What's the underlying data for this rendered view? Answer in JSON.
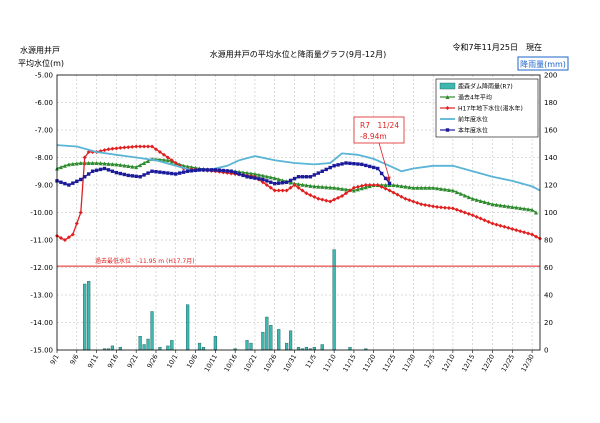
{
  "chart_data": {
    "type": "line",
    "title": "水源用井戸の平均水位と降雨量グラフ(9月-12月)",
    "date_label": "令和7年11月25日　現在",
    "left_axis_label": [
      "水源用井戸",
      "平均水位(m)"
    ],
    "right_axis_label": "降雨量(mm)",
    "left_ylim": [
      -15.0,
      -5.0
    ],
    "right_ylim": [
      0,
      200
    ],
    "left_ticks": [
      "-5.00",
      "-6.00",
      "-7.00",
      "-8.00",
      "-9.00",
      "-10.00",
      "-11.00",
      "-12.00",
      "-13.00",
      "-14.00",
      "-15.00"
    ],
    "right_ticks": [
      "200",
      "180",
      "160",
      "140",
      "120",
      "100",
      "80",
      "60",
      "40",
      "20",
      "0"
    ],
    "x_tick_labels": [
      "9/1",
      "9/6",
      "9/11",
      "9/16",
      "9/21",
      "9/26",
      "10/1",
      "10/6",
      "10/11",
      "10/16",
      "10/21",
      "10/26",
      "10/31",
      "11/5",
      "11/10",
      "11/15",
      "11/20",
      "11/25",
      "11/30",
      "12/5",
      "12/10",
      "12/15",
      "12/20",
      "12/25",
      "12/30"
    ],
    "grid": true,
    "legend_position": "top-right",
    "legend": [
      {
        "label": "鹿森ダム降雨量(R7)",
        "color": "#3cb8b0",
        "kind": "bar"
      },
      {
        "label": "過去4年平均",
        "color": "#2e8b2e",
        "kind": "line-triangle"
      },
      {
        "label": "H17年地下水位(渇水年)",
        "color": "#e02020",
        "kind": "line-diamond"
      },
      {
        "label": "前年度水位",
        "color": "#5ab4d6",
        "kind": "line"
      },
      {
        "label": "本年度水位",
        "color": "#1a1a9a",
        "kind": "line-square"
      }
    ],
    "reference_line": {
      "value": -11.95,
      "label": "過去最低水位　-11.95 m (H17.7月)",
      "color": "#e02020"
    },
    "callout": {
      "line1": "R7　11/24",
      "line2": "-8.94m",
      "color": "#e02020",
      "day": 84,
      "value": -8.94
    },
    "rainfall": [
      {
        "day": 7,
        "value": 48
      },
      {
        "day": 8,
        "value": 50
      },
      {
        "day": 12,
        "value": 1
      },
      {
        "day": 13,
        "value": 1
      },
      {
        "day": 14,
        "value": 3
      },
      {
        "day": 16,
        "value": 2
      },
      {
        "day": 21,
        "value": 10
      },
      {
        "day": 22,
        "value": 4
      },
      {
        "day": 23,
        "value": 8
      },
      {
        "day": 24,
        "value": 28
      },
      {
        "day": 26,
        "value": 2
      },
      {
        "day": 28,
        "value": 3
      },
      {
        "day": 29,
        "value": 7
      },
      {
        "day": 33,
        "value": 33
      },
      {
        "day": 36,
        "value": 5
      },
      {
        "day": 37,
        "value": 2
      },
      {
        "day": 40,
        "value": 10
      },
      {
        "day": 45,
        "value": 1
      },
      {
        "day": 48,
        "value": 7
      },
      {
        "day": 49,
        "value": 5
      },
      {
        "day": 52,
        "value": 13
      },
      {
        "day": 53,
        "value": 24
      },
      {
        "day": 54,
        "value": 18
      },
      {
        "day": 56,
        "value": 15
      },
      {
        "day": 58,
        "value": 5
      },
      {
        "day": 59,
        "value": 14
      },
      {
        "day": 61,
        "value": 2
      },
      {
        "day": 62,
        "value": 1
      },
      {
        "day": 63,
        "value": 2
      },
      {
        "day": 64,
        "value": 1
      },
      {
        "day": 65,
        "value": 2
      },
      {
        "day": 67,
        "value": 4
      },
      {
        "day": 70,
        "value": 73
      },
      {
        "day": 74,
        "value": 2
      },
      {
        "day": 78,
        "value": 1
      }
    ],
    "series": [
      {
        "name": "過去4年平均",
        "color": "#2e8b2e",
        "marker": "triangle",
        "points": [
          [
            0,
            -8.4
          ],
          [
            3,
            -8.25
          ],
          [
            6,
            -8.2
          ],
          [
            10,
            -8.2
          ],
          [
            15,
            -8.25
          ],
          [
            20,
            -8.35
          ],
          [
            24,
            -8.05
          ],
          [
            28,
            -8.1
          ],
          [
            32,
            -8.3
          ],
          [
            36,
            -8.4
          ],
          [
            40,
            -8.45
          ],
          [
            45,
            -8.5
          ],
          [
            50,
            -8.6
          ],
          [
            55,
            -8.75
          ],
          [
            60,
            -8.95
          ],
          [
            65,
            -9.05
          ],
          [
            70,
            -9.1
          ],
          [
            75,
            -9.2
          ],
          [
            80,
            -9.0
          ],
          [
            85,
            -9.0
          ],
          [
            90,
            -9.1
          ],
          [
            95,
            -9.1
          ],
          [
            100,
            -9.2
          ],
          [
            105,
            -9.5
          ],
          [
            110,
            -9.7
          ],
          [
            115,
            -9.8
          ],
          [
            120,
            -9.9
          ],
          [
            121,
            -10.0
          ]
        ]
      },
      {
        "name": "H17年地下水位(渇水年)",
        "color": "#e02020",
        "marker": "diamond",
        "points": [
          [
            0,
            -10.85
          ],
          [
            2,
            -11.0
          ],
          [
            4,
            -10.8
          ],
          [
            6,
            -10.0
          ],
          [
            7,
            -8.0
          ],
          [
            8,
            -7.8
          ],
          [
            10,
            -7.8
          ],
          [
            13,
            -7.7
          ],
          [
            16,
            -7.65
          ],
          [
            20,
            -7.6
          ],
          [
            24,
            -7.6
          ],
          [
            28,
            -8.0
          ],
          [
            32,
            -8.4
          ],
          [
            36,
            -8.45
          ],
          [
            40,
            -8.5
          ],
          [
            45,
            -8.6
          ],
          [
            50,
            -8.7
          ],
          [
            55,
            -9.2
          ],
          [
            58,
            -9.2
          ],
          [
            60,
            -9.0
          ],
          [
            63,
            -9.3
          ],
          [
            66,
            -9.5
          ],
          [
            69,
            -9.6
          ],
          [
            72,
            -9.4
          ],
          [
            75,
            -9.1
          ],
          [
            78,
            -9.0
          ],
          [
            81,
            -9.0
          ],
          [
            84,
            -9.2
          ],
          [
            88,
            -9.5
          ],
          [
            92,
            -9.7
          ],
          [
            96,
            -9.8
          ],
          [
            100,
            -9.85
          ],
          [
            105,
            -10.1
          ],
          [
            110,
            -10.4
          ],
          [
            115,
            -10.6
          ],
          [
            120,
            -10.8
          ],
          [
            122,
            -10.95
          ]
        ]
      },
      {
        "name": "前年度水位",
        "color": "#5ab4d6",
        "marker": "none",
        "points": [
          [
            0,
            -7.55
          ],
          [
            5,
            -7.6
          ],
          [
            10,
            -7.8
          ],
          [
            15,
            -7.9
          ],
          [
            20,
            -8.0
          ],
          [
            25,
            -8.1
          ],
          [
            30,
            -8.3
          ],
          [
            35,
            -8.5
          ],
          [
            40,
            -8.4
          ],
          [
            43,
            -8.3
          ],
          [
            46,
            -8.1
          ],
          [
            50,
            -7.95
          ],
          [
            55,
            -8.1
          ],
          [
            60,
            -8.2
          ],
          [
            65,
            -8.25
          ],
          [
            69,
            -8.2
          ],
          [
            72,
            -7.85
          ],
          [
            76,
            -7.9
          ],
          [
            80,
            -8.05
          ],
          [
            84,
            -8.3
          ],
          [
            87,
            -8.5
          ],
          [
            90,
            -8.4
          ],
          [
            95,
            -8.3
          ],
          [
            100,
            -8.3
          ],
          [
            105,
            -8.5
          ],
          [
            110,
            -8.7
          ],
          [
            115,
            -8.85
          ],
          [
            120,
            -9.05
          ],
          [
            122,
            -9.2
          ]
        ]
      },
      {
        "name": "本年度水位",
        "color": "#1a1a9a",
        "marker": "square",
        "points": [
          [
            0,
            -8.85
          ],
          [
            3,
            -9.0
          ],
          [
            6,
            -8.8
          ],
          [
            9,
            -8.5
          ],
          [
            12,
            -8.4
          ],
          [
            15,
            -8.55
          ],
          [
            18,
            -8.65
          ],
          [
            21,
            -8.7
          ],
          [
            24,
            -8.5
          ],
          [
            27,
            -8.55
          ],
          [
            30,
            -8.6
          ],
          [
            33,
            -8.5
          ],
          [
            36,
            -8.45
          ],
          [
            40,
            -8.45
          ],
          [
            44,
            -8.5
          ],
          [
            48,
            -8.7
          ],
          [
            52,
            -8.8
          ],
          [
            55,
            -8.95
          ],
          [
            58,
            -8.9
          ],
          [
            61,
            -8.7
          ],
          [
            64,
            -8.7
          ],
          [
            67,
            -8.5
          ],
          [
            70,
            -8.3
          ],
          [
            73,
            -8.2
          ],
          [
            77,
            -8.25
          ],
          [
            81,
            -8.4
          ],
          [
            84,
            -8.94
          ]
        ]
      }
    ]
  }
}
